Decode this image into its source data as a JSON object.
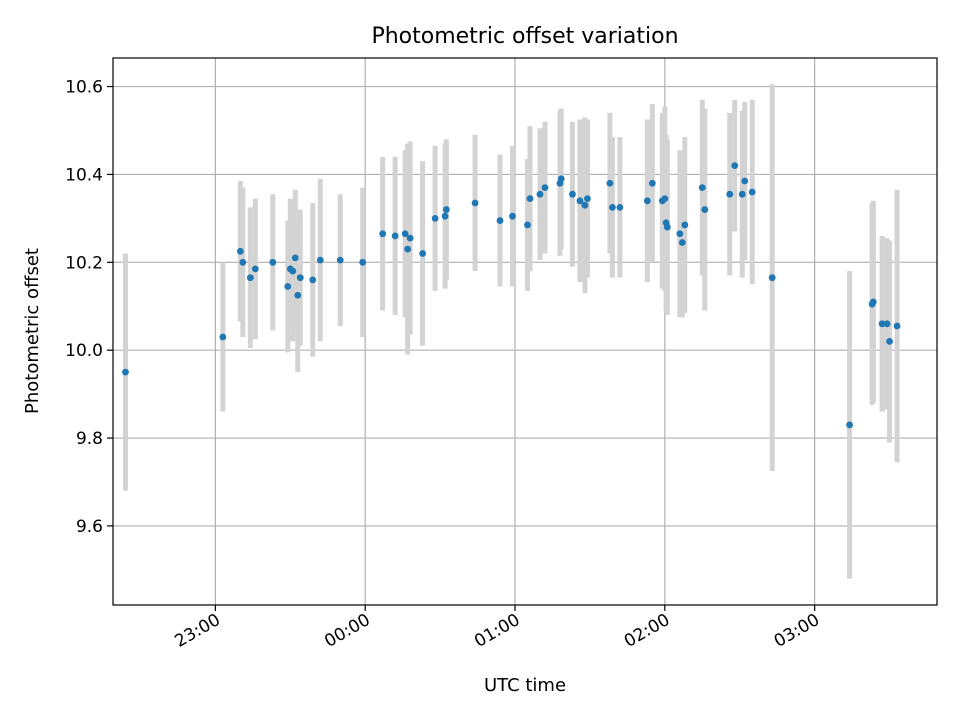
{
  "chart_data": {
    "type": "scatter",
    "title": "Photometric offset variation",
    "xlabel": "UTC time",
    "ylabel": "Photometric offset",
    "x_unit": "UTC clock time",
    "xlim": [
      "22:19:00",
      "03:49:00"
    ],
    "ylim": [
      9.42,
      10.665
    ],
    "x_ticks": [
      "23:00",
      "00:00",
      "01:00",
      "02:00",
      "03:00"
    ],
    "y_ticks": [
      "9.6",
      "9.8",
      "10.0",
      "10.2",
      "10.4",
      "10.6"
    ],
    "grid": true,
    "point_color": "#1f77b4",
    "errorbar_color": "#d3d3d3",
    "series": [
      {
        "points": [
          {
            "x": "22:24:00",
            "y": 9.95,
            "yerr": 0.27
          },
          {
            "x": "23:03:00",
            "y": 10.03,
            "yerr": 0.17
          },
          {
            "x": "23:10:00",
            "y": 10.225,
            "yerr": 0.16
          },
          {
            "x": "23:11:00",
            "y": 10.2,
            "yerr": 0.17
          },
          {
            "x": "23:14:00",
            "y": 10.165,
            "yerr": 0.16
          },
          {
            "x": "23:16:00",
            "y": 10.185,
            "yerr": 0.16
          },
          {
            "x": "23:23:00",
            "y": 10.2,
            "yerr": 0.155
          },
          {
            "x": "23:29:00",
            "y": 10.145,
            "yerr": 0.15
          },
          {
            "x": "23:30:00",
            "y": 10.185,
            "yerr": 0.16
          },
          {
            "x": "23:31:00",
            "y": 10.18,
            "yerr": 0.16
          },
          {
            "x": "23:32:00",
            "y": 10.21,
            "yerr": 0.155
          },
          {
            "x": "23:33:00",
            "y": 10.125,
            "yerr": 0.175
          },
          {
            "x": "23:34:00",
            "y": 10.165,
            "yerr": 0.155
          },
          {
            "x": "23:39:00",
            "y": 10.16,
            "yerr": 0.175
          },
          {
            "x": "23:42:00",
            "y": 10.205,
            "yerr": 0.185
          },
          {
            "x": "23:50:00",
            "y": 10.205,
            "yerr": 0.15
          },
          {
            "x": "23:59:00",
            "y": 10.2,
            "yerr": 0.17
          },
          {
            "x": "00:07:00",
            "y": 10.265,
            "yerr": 0.175
          },
          {
            "x": "00:12:00",
            "y": 10.26,
            "yerr": 0.18
          },
          {
            "x": "00:16:00",
            "y": 10.265,
            "yerr": 0.19
          },
          {
            "x": "00:17:00",
            "y": 10.23,
            "yerr": 0.24
          },
          {
            "x": "00:18:00",
            "y": 10.255,
            "yerr": 0.22
          },
          {
            "x": "00:23:00",
            "y": 10.22,
            "yerr": 0.21
          },
          {
            "x": "00:28:00",
            "y": 10.3,
            "yerr": 0.165
          },
          {
            "x": "00:32:00",
            "y": 10.305,
            "yerr": 0.165
          },
          {
            "x": "00:32:30",
            "y": 10.32,
            "yerr": 0.16
          },
          {
            "x": "00:44:00",
            "y": 10.335,
            "yerr": 0.155
          },
          {
            "x": "00:54:00",
            "y": 10.295,
            "yerr": 0.15
          },
          {
            "x": "00:59:00",
            "y": 10.305,
            "yerr": 0.16
          },
          {
            "x": "01:05:00",
            "y": 10.285,
            "yerr": 0.15
          },
          {
            "x": "01:06:00",
            "y": 10.345,
            "yerr": 0.165
          },
          {
            "x": "01:10:00",
            "y": 10.355,
            "yerr": 0.15
          },
          {
            "x": "01:12:00",
            "y": 10.37,
            "yerr": 0.15
          },
          {
            "x": "01:18:00",
            "y": 10.38,
            "yerr": 0.165
          },
          {
            "x": "01:18:30",
            "y": 10.39,
            "yerr": 0.16
          },
          {
            "x": "01:23:00",
            "y": 10.355,
            "yerr": 0.165
          },
          {
            "x": "01:26:00",
            "y": 10.34,
            "yerr": 0.185
          },
          {
            "x": "01:28:00",
            "y": 10.33,
            "yerr": 0.2
          },
          {
            "x": "01:29:00",
            "y": 10.345,
            "yerr": 0.18
          },
          {
            "x": "01:38:00",
            "y": 10.38,
            "yerr": 0.16
          },
          {
            "x": "01:39:00",
            "y": 10.325,
            "yerr": 0.16
          },
          {
            "x": "01:42:00",
            "y": 10.325,
            "yerr": 0.16
          },
          {
            "x": "01:53:00",
            "y": 10.34,
            "yerr": 0.185
          },
          {
            "x": "01:55:00",
            "y": 10.38,
            "yerr": 0.18
          },
          {
            "x": "01:59:00",
            "y": 10.34,
            "yerr": 0.2
          },
          {
            "x": "02:00:00",
            "y": 10.345,
            "yerr": 0.21
          },
          {
            "x": "02:00:30",
            "y": 10.29,
            "yerr": 0.2
          },
          {
            "x": "02:01:00",
            "y": 10.28,
            "yerr": 0.2
          },
          {
            "x": "02:06:00",
            "y": 10.265,
            "yerr": 0.19
          },
          {
            "x": "02:07:00",
            "y": 10.245,
            "yerr": 0.17
          },
          {
            "x": "02:08:00",
            "y": 10.285,
            "yerr": 0.2
          },
          {
            "x": "02:15:00",
            "y": 10.37,
            "yerr": 0.2
          },
          {
            "x": "02:16:00",
            "y": 10.32,
            "yerr": 0.23
          },
          {
            "x": "02:26:00",
            "y": 10.355,
            "yerr": 0.185
          },
          {
            "x": "02:28:00",
            "y": 10.42,
            "yerr": 0.15
          },
          {
            "x": "02:31:00",
            "y": 10.355,
            "yerr": 0.19
          },
          {
            "x": "02:32:00",
            "y": 10.385,
            "yerr": 0.18
          },
          {
            "x": "02:35:00",
            "y": 10.36,
            "yerr": 0.21
          },
          {
            "x": "02:43:00",
            "y": 10.165,
            "yerr": 0.44
          },
          {
            "x": "03:14:00",
            "y": 9.83,
            "yerr": 0.35
          },
          {
            "x": "03:23:00",
            "y": 10.105,
            "yerr": 0.23
          },
          {
            "x": "03:23:30",
            "y": 10.11,
            "yerr": 0.23
          },
          {
            "x": "03:27:00",
            "y": 10.06,
            "yerr": 0.2
          },
          {
            "x": "03:29:00",
            "y": 10.06,
            "yerr": 0.195
          },
          {
            "x": "03:30:00",
            "y": 10.02,
            "yerr": 0.23
          },
          {
            "x": "03:33:00",
            "y": 10.055,
            "yerr": 0.31
          }
        ]
      }
    ]
  }
}
